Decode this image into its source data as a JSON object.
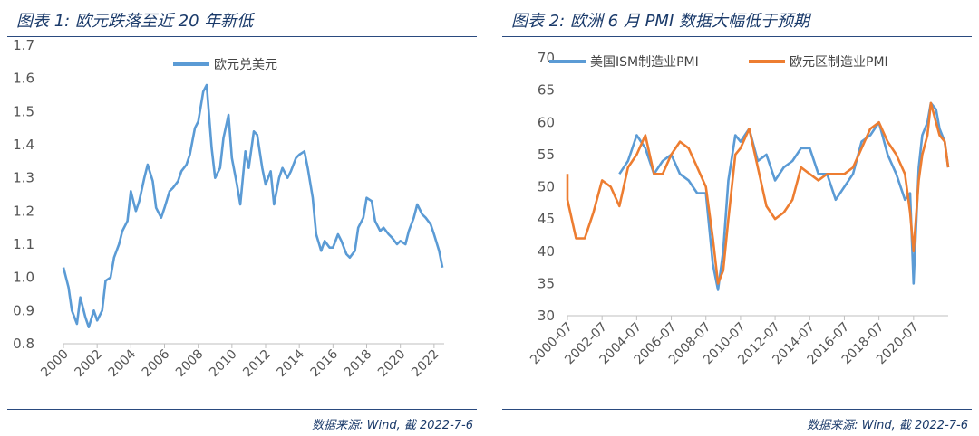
{
  "figure1": {
    "title": "图表 1: 欧元跌落至近 20 年新低",
    "source": "数据来源: Wind, 截 2022-7-6",
    "chart_data": {
      "type": "line",
      "title": "图表 1: 欧元跌落至近 20 年新低",
      "xlabel": "",
      "ylabel": "",
      "x_ticks": [
        "2000",
        "2002",
        "2004",
        "2006",
        "2008",
        "2010",
        "2012",
        "2014",
        "2016",
        "2018",
        "2020",
        "2022"
      ],
      "y_ticks": [
        "0.8",
        "0.9",
        "1.0",
        "1.1",
        "1.2",
        "1.3",
        "1.4",
        "1.5",
        "1.6",
        "1.7"
      ],
      "ylim": [
        0.8,
        1.7
      ],
      "xlim": [
        2000,
        2022.6
      ],
      "grid": false,
      "legend": "top-center",
      "colors": {
        "series": "#5b9bd5"
      },
      "x": [
        2000.0,
        2000.3,
        2000.5,
        2000.8,
        2001.0,
        2001.3,
        2001.5,
        2001.8,
        2002.0,
        2002.3,
        2002.5,
        2002.8,
        2003.0,
        2003.3,
        2003.5,
        2003.8,
        2004.0,
        2004.3,
        2004.5,
        2004.8,
        2005.0,
        2005.3,
        2005.5,
        2005.8,
        2006.0,
        2006.3,
        2006.5,
        2006.8,
        2007.0,
        2007.3,
        2007.5,
        2007.8,
        2008.0,
        2008.3,
        2008.5,
        2008.8,
        2009.0,
        2009.3,
        2009.5,
        2009.8,
        2010.0,
        2010.3,
        2010.5,
        2010.8,
        2011.0,
        2011.3,
        2011.5,
        2011.8,
        2012.0,
        2012.3,
        2012.5,
        2012.8,
        2013.0,
        2013.3,
        2013.5,
        2013.8,
        2014.0,
        2014.3,
        2014.5,
        2014.8,
        2015.0,
        2015.3,
        2015.5,
        2015.8,
        2016.0,
        2016.3,
        2016.5,
        2016.8,
        2017.0,
        2017.3,
        2017.5,
        2017.8,
        2018.0,
        2018.3,
        2018.5,
        2018.8,
        2019.0,
        2019.3,
        2019.5,
        2019.8,
        2020.0,
        2020.3,
        2020.5,
        2020.8,
        2021.0,
        2021.3,
        2021.5,
        2021.8,
        2022.0,
        2022.3,
        2022.5
      ],
      "series": [
        {
          "name": "欧元兑美元",
          "values": [
            1.03,
            0.97,
            0.9,
            0.86,
            0.94,
            0.88,
            0.85,
            0.9,
            0.87,
            0.9,
            0.99,
            1.0,
            1.06,
            1.1,
            1.14,
            1.17,
            1.26,
            1.2,
            1.23,
            1.3,
            1.34,
            1.29,
            1.21,
            1.18,
            1.21,
            1.26,
            1.27,
            1.29,
            1.32,
            1.34,
            1.37,
            1.45,
            1.47,
            1.56,
            1.58,
            1.39,
            1.3,
            1.33,
            1.42,
            1.49,
            1.36,
            1.28,
            1.22,
            1.38,
            1.33,
            1.44,
            1.43,
            1.33,
            1.28,
            1.32,
            1.22,
            1.3,
            1.33,
            1.3,
            1.32,
            1.36,
            1.37,
            1.38,
            1.33,
            1.24,
            1.13,
            1.08,
            1.11,
            1.09,
            1.09,
            1.13,
            1.11,
            1.07,
            1.06,
            1.08,
            1.15,
            1.18,
            1.24,
            1.23,
            1.17,
            1.14,
            1.15,
            1.13,
            1.12,
            1.1,
            1.11,
            1.1,
            1.14,
            1.18,
            1.22,
            1.19,
            1.18,
            1.16,
            1.13,
            1.08,
            1.03
          ]
        }
      ]
    }
  },
  "figure2": {
    "title": "图表 2: 欧洲 6 月 PMI 数据大幅低于预期",
    "source": "数据来源: Wind, 截 2022-7-6",
    "chart_data": {
      "type": "line",
      "title": "图表 2: 欧洲 6 月 PMI 数据大幅低于预期",
      "xlabel": "",
      "ylabel": "",
      "x_ticks": [
        "2000-07",
        "2002-07",
        "2004-07",
        "2006-07",
        "2008-07",
        "2010-07",
        "2012-07",
        "2014-07",
        "2016-07",
        "2018-07",
        "2020-07"
      ],
      "y_ticks": [
        "30",
        "35",
        "40",
        "45",
        "50",
        "55",
        "60",
        "65",
        "70"
      ],
      "ylim": [
        30,
        70
      ],
      "xlim": [
        2000.5,
        2022.5
      ],
      "grid": false,
      "legend": "top",
      "colors": {
        "us": "#5b9bd5",
        "eu": "#ed7d31"
      },
      "x_us": [
        2003.5,
        2004.0,
        2004.5,
        2005.0,
        2005.5,
        2006.0,
        2006.5,
        2007.0,
        2007.5,
        2008.0,
        2008.5,
        2008.9,
        2009.2,
        2009.5,
        2009.8,
        2010.2,
        2010.5,
        2011.0,
        2011.5,
        2012.0,
        2012.5,
        2013.0,
        2013.5,
        2014.0,
        2014.5,
        2015.0,
        2015.5,
        2016.0,
        2016.5,
        2017.0,
        2017.5,
        2018.0,
        2018.5,
        2019.0,
        2019.5,
        2020.0,
        2020.3,
        2020.5,
        2020.8,
        2021.0,
        2021.3,
        2021.5,
        2021.8,
        2022.0,
        2022.3,
        2022.5
      ],
      "x_eu": [
        2000.0,
        2000.5,
        2001.0,
        2001.5,
        2002.0,
        2002.5,
        2003.0,
        2003.5,
        2004.0,
        2004.5,
        2005.0,
        2005.5,
        2006.0,
        2006.5,
        2007.0,
        2007.5,
        2008.0,
        2008.5,
        2008.9,
        2009.2,
        2009.5,
        2009.8,
        2010.2,
        2010.5,
        2011.0,
        2011.5,
        2012.0,
        2012.5,
        2013.0,
        2013.5,
        2014.0,
        2014.5,
        2015.0,
        2015.5,
        2016.0,
        2016.5,
        2017.0,
        2017.5,
        2018.0,
        2018.5,
        2019.0,
        2019.5,
        2020.0,
        2020.3,
        2020.5,
        2020.8,
        2021.0,
        2021.3,
        2021.5,
        2021.8,
        2022.0,
        2022.3,
        2022.5
      ],
      "series": [
        {
          "name": "美国ISM制造业PMI",
          "values": [
            52,
            54,
            58,
            56,
            52,
            54,
            55,
            52,
            51,
            49,
            49,
            38,
            34,
            40,
            51,
            58,
            57,
            59,
            54,
            55,
            51,
            53,
            54,
            56,
            56,
            52,
            52,
            48,
            50,
            52,
            57,
            58,
            60,
            55,
            52,
            48,
            49,
            35,
            53,
            58,
            60,
            63,
            62,
            59,
            57,
            53
          ]
        },
        {
          "name": "欧元区制造业PMI",
          "values": [
            52,
            48,
            42,
            42,
            46,
            51,
            50,
            47,
            53,
            55,
            58,
            52,
            52,
            55,
            57,
            56,
            53,
            50,
            42,
            35,
            37,
            45,
            55,
            56,
            59,
            53,
            47,
            45,
            46,
            48,
            53,
            52,
            51,
            52,
            52,
            52,
            53,
            56,
            59,
            60,
            57,
            55,
            52,
            46,
            40,
            51,
            55,
            58,
            63,
            60,
            58,
            57,
            53
          ]
        }
      ]
    }
  }
}
